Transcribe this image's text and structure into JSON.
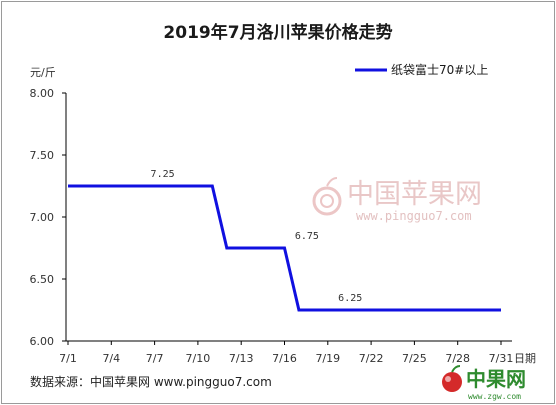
{
  "chart_data": {
    "type": "line",
    "title": "2019年7月洛川苹果价格走势",
    "ylabel": "元/斤",
    "xlabel": "日期",
    "ylim": [
      6.0,
      8.0
    ],
    "y_ticks": [
      "8.00",
      "7.50",
      "7.00",
      "6.50",
      "6.00"
    ],
    "categories": [
      "7/1",
      "7/4",
      "7/7",
      "7/10",
      "7/13",
      "7/16",
      "7/19",
      "7/22",
      "7/25",
      "7/28",
      "7/31"
    ],
    "series": [
      {
        "name": "纸袋富士70#以上",
        "color": "#1010e0",
        "points": [
          {
            "x": "7/1",
            "y": 7.25
          },
          {
            "x": "7/11",
            "y": 7.25
          },
          {
            "x": "7/12",
            "y": 6.75
          },
          {
            "x": "7/16",
            "y": 6.75
          },
          {
            "x": "7/17",
            "y": 6.25
          },
          {
            "x": "7/31",
            "y": 6.25
          }
        ]
      }
    ],
    "data_labels": [
      {
        "text": "7.25",
        "x": "7/7",
        "y": 7.25
      },
      {
        "text": "6.75",
        "x": "7/17",
        "y": 6.75
      },
      {
        "text": "6.25",
        "x": "7/20",
        "y": 6.25
      }
    ],
    "grid": false,
    "legend_position": "top-right"
  },
  "footer": {
    "source": "数据来源：中国苹果网 www.pingguo7.com"
  },
  "watermark": {
    "text": "中国苹果网",
    "url": "www.pingguo7.com"
  },
  "logo": {
    "text": "中果网",
    "url": "www.zgw.com"
  }
}
